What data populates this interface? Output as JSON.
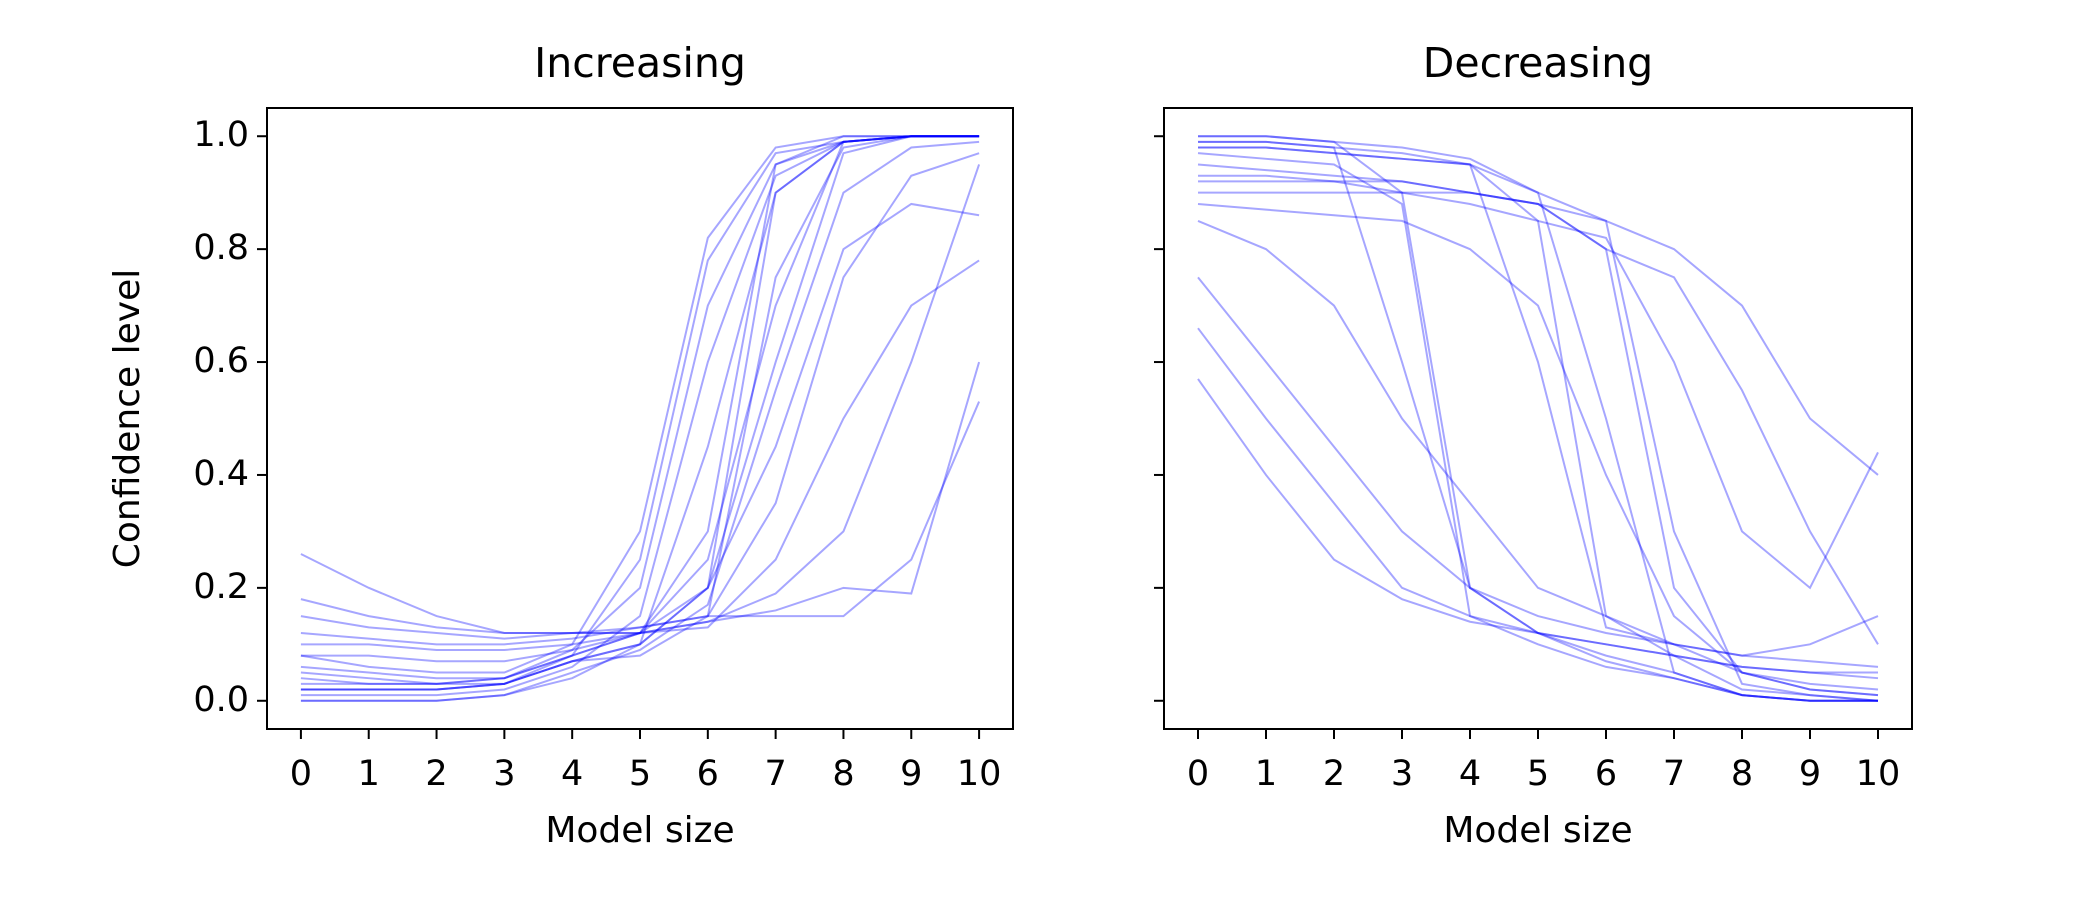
{
  "chart_data": [
    {
      "type": "line",
      "title": "Increasing",
      "xlabel": "Model size",
      "ylabel": "Confidence level",
      "x": [
        0,
        1,
        2,
        3,
        4,
        5,
        6,
        7,
        8,
        9,
        10
      ],
      "xlim": [
        -0.5,
        10.5
      ],
      "xticks": [
        0,
        1,
        2,
        3,
        4,
        5,
        6,
        7,
        8,
        9,
        10
      ],
      "ylim": [
        -0.05,
        1.05
      ],
      "yticks": [
        {
          "value": 0,
          "label": "0.0"
        },
        0.2,
        0.4,
        0.6,
        0.8,
        {
          "value": 1,
          "label": "1.0"
        }
      ],
      "ytick_labels": true,
      "color": "#0000ff",
      "line_alpha": 0.35,
      "series": [
        {
          "values": [
            0.02,
            0.02,
            0.02,
            0.03,
            0.08,
            0.25,
            0.78,
            0.97,
            0.99,
            1.0,
            1.0
          ]
        },
        {
          "values": [
            0.05,
            0.04,
            0.03,
            0.04,
            0.09,
            0.2,
            0.7,
            0.95,
            0.99,
            1.0,
            1.0
          ]
        },
        {
          "values": [
            0.08,
            0.06,
            0.05,
            0.05,
            0.1,
            0.3,
            0.82,
            0.98,
            1.0,
            1.0,
            1.0
          ]
        },
        {
          "values": [
            0.01,
            0.01,
            0.01,
            0.02,
            0.06,
            0.15,
            0.6,
            0.93,
            0.99,
            1.0,
            1.0
          ]
        },
        {
          "values": [
            0.0,
            0.0,
            0.0,
            0.01,
            0.04,
            0.1,
            0.45,
            0.9,
            0.99,
            1.0,
            1.0
          ]
        },
        {
          "values": [
            0.02,
            0.02,
            0.02,
            0.03,
            0.07,
            0.1,
            0.2,
            0.9,
            0.99,
            1.0,
            1.0
          ]
        },
        {
          "values": [
            0.06,
            0.05,
            0.04,
            0.04,
            0.08,
            0.12,
            0.3,
            0.95,
            1.0,
            1.0,
            1.0
          ]
        },
        {
          "values": [
            0.03,
            0.03,
            0.03,
            0.03,
            0.07,
            0.08,
            0.15,
            0.75,
            0.98,
            1.0,
            1.0
          ]
        },
        {
          "values": [
            0.02,
            0.02,
            0.02,
            0.03,
            0.07,
            0.1,
            0.2,
            0.6,
            0.97,
            1.0,
            1.0
          ]
        },
        {
          "values": [
            0.04,
            0.03,
            0.03,
            0.04,
            0.08,
            0.12,
            0.25,
            0.7,
            0.99,
            1.0,
            1.0
          ]
        },
        {
          "values": [
            0.0,
            0.0,
            0.0,
            0.01,
            0.05,
            0.09,
            0.17,
            0.55,
            0.9,
            0.98,
            0.99
          ]
        },
        {
          "values": [
            0.15,
            0.13,
            0.12,
            0.11,
            0.12,
            0.13,
            0.15,
            0.35,
            0.75,
            0.93,
            0.97
          ]
        },
        {
          "values": [
            0.26,
            0.2,
            0.15,
            0.12,
            0.12,
            0.12,
            0.14,
            0.19,
            0.3,
            0.6,
            0.95
          ]
        },
        {
          "values": [
            0.1,
            0.1,
            0.09,
            0.09,
            0.1,
            0.12,
            0.14,
            0.16,
            0.2,
            0.19,
            0.6
          ]
        },
        {
          "values": [
            0.12,
            0.11,
            0.1,
            0.1,
            0.11,
            0.13,
            0.15,
            0.15,
            0.15,
            0.25,
            0.53
          ]
        },
        {
          "values": [
            0.08,
            0.08,
            0.07,
            0.07,
            0.09,
            0.12,
            0.2,
            0.45,
            0.8,
            0.88,
            0.86
          ]
        },
        {
          "values": [
            0.18,
            0.15,
            0.13,
            0.12,
            0.12,
            0.12,
            0.13,
            0.25,
            0.5,
            0.7,
            0.78
          ]
        }
      ]
    },
    {
      "type": "line",
      "title": "Decreasing",
      "xlabel": "Model size",
      "x": [
        0,
        1,
        2,
        3,
        4,
        5,
        6,
        7,
        8,
        9,
        10
      ],
      "xlim": [
        -0.5,
        10.5
      ],
      "xticks": [
        0,
        1,
        2,
        3,
        4,
        5,
        6,
        7,
        8,
        9,
        10
      ],
      "ylim": [
        -0.05,
        1.05
      ],
      "yticks": [
        0,
        0.2,
        0.4,
        0.6,
        0.8,
        1
      ],
      "ytick_labels": false,
      "color": "#0000ff",
      "line_alpha": 0.35,
      "series": [
        {
          "values": [
            1.0,
            1.0,
            0.99,
            0.98,
            0.96,
            0.9,
            0.5,
            0.05,
            0.01,
            0.0,
            0.0
          ]
        },
        {
          "values": [
            0.99,
            0.99,
            0.98,
            0.97,
            0.95,
            0.85,
            0.15,
            0.08,
            0.02,
            0.01,
            0.0
          ]
        },
        {
          "values": [
            0.98,
            0.98,
            0.97,
            0.96,
            0.95,
            0.6,
            0.13,
            0.1,
            0.05,
            0.02,
            0.01
          ]
        },
        {
          "values": [
            1.0,
            1.0,
            0.99,
            0.9,
            0.2,
            0.12,
            0.08,
            0.05,
            0.01,
            0.0,
            0.0
          ]
        },
        {
          "values": [
            0.97,
            0.96,
            0.95,
            0.88,
            0.15,
            0.1,
            0.06,
            0.04,
            0.01,
            0.0,
            0.0
          ]
        },
        {
          "values": [
            0.99,
            0.99,
            0.98,
            0.6,
            0.2,
            0.12,
            0.07,
            0.04,
            0.01,
            0.0,
            0.0
          ]
        },
        {
          "values": [
            0.95,
            0.94,
            0.93,
            0.92,
            0.9,
            0.88,
            0.8,
            0.2,
            0.05,
            0.02,
            0.01
          ]
        },
        {
          "values": [
            0.98,
            0.98,
            0.97,
            0.96,
            0.95,
            0.9,
            0.85,
            0.3,
            0.03,
            0.01,
            0.0
          ]
        },
        {
          "values": [
            0.9,
            0.9,
            0.9,
            0.9,
            0.9,
            0.88,
            0.8,
            0.75,
            0.55,
            0.3,
            0.1
          ]
        },
        {
          "values": [
            0.92,
            0.92,
            0.92,
            0.92,
            0.9,
            0.88,
            0.85,
            0.8,
            0.7,
            0.5,
            0.4
          ]
        },
        {
          "values": [
            0.85,
            0.8,
            0.7,
            0.5,
            0.35,
            0.2,
            0.15,
            0.1,
            0.08,
            0.1,
            0.15
          ]
        },
        {
          "values": [
            0.75,
            0.6,
            0.45,
            0.3,
            0.2,
            0.15,
            0.12,
            0.1,
            0.08,
            0.07,
            0.06
          ]
        },
        {
          "values": [
            0.66,
            0.5,
            0.35,
            0.2,
            0.15,
            0.12,
            0.1,
            0.08,
            0.06,
            0.05,
            0.05
          ]
        },
        {
          "values": [
            0.57,
            0.4,
            0.25,
            0.18,
            0.14,
            0.12,
            0.1,
            0.08,
            0.06,
            0.05,
            0.04
          ]
        },
        {
          "values": [
            0.88,
            0.87,
            0.86,
            0.85,
            0.8,
            0.7,
            0.4,
            0.15,
            0.05,
            0.03,
            0.02
          ]
        },
        {
          "values": [
            0.93,
            0.93,
            0.92,
            0.9,
            0.88,
            0.85,
            0.82,
            0.6,
            0.3,
            0.2,
            0.44
          ]
        }
      ]
    }
  ]
}
